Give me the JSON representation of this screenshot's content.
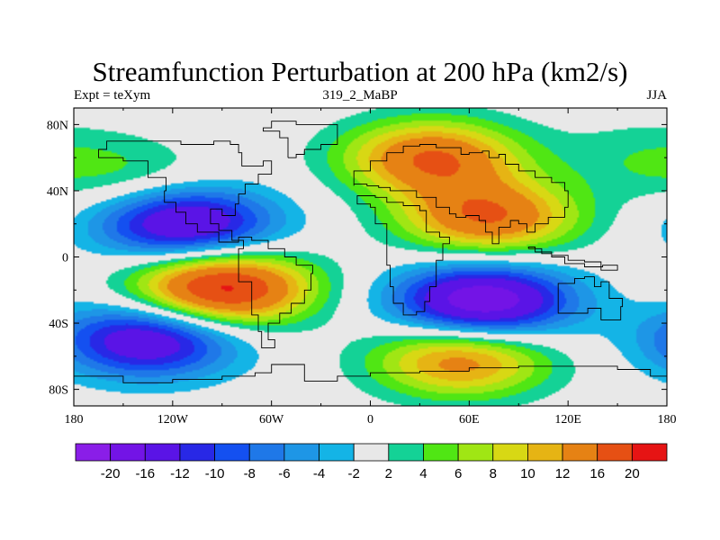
{
  "chart_data": {
    "type": "heatmap",
    "title": "Streamfunction Perturbation at 200 hPa (km2/s)",
    "left_string": "Expt = teXym",
    "center_string": "319_2_MaBP",
    "right_string": "JJA",
    "xlim": [
      -180,
      180
    ],
    "ylim": [
      -90,
      90
    ],
    "x_ticks": [
      {
        "value": -180,
        "label": "180"
      },
      {
        "value": -120,
        "label": "120W"
      },
      {
        "value": -60,
        "label": "60W"
      },
      {
        "value": 0,
        "label": "0"
      },
      {
        "value": 60,
        "label": "60E"
      },
      {
        "value": 120,
        "label": "120E"
      },
      {
        "value": 180,
        "label": "180"
      }
    ],
    "y_ticks": [
      {
        "value": 80,
        "label": "80N"
      },
      {
        "value": 40,
        "label": "40N"
      },
      {
        "value": 0,
        "label": "0"
      },
      {
        "value": -40,
        "label": "40S"
      },
      {
        "value": -80,
        "label": "80S"
      }
    ],
    "colorbar": {
      "levels": [
        -20,
        -16,
        -12,
        -10,
        -8,
        -6,
        -4,
        -2,
        2,
        4,
        6,
        8,
        10,
        12,
        16,
        20
      ],
      "labels": [
        "-20",
        "-16",
        "-12",
        "-10",
        "-8",
        "-6",
        "-4",
        "-2",
        "2",
        "4",
        "6",
        "8",
        "10",
        "12",
        "16",
        "20"
      ],
      "colors": [
        "#8a1ee8",
        "#7314e6",
        "#5a14e6",
        "#2828e6",
        "#1450f0",
        "#1f78e8",
        "#1e96e6",
        "#14b4e6",
        "#e8e8e8",
        "#14d296",
        "#50e614",
        "#a0e614",
        "#d8d814",
        "#e6b414",
        "#e68214",
        "#e65014",
        "#e61414"
      ]
    },
    "anomaly_centers": [
      {
        "lon": -112,
        "lat": 20,
        "peak": -17
      },
      {
        "lon": -90,
        "lat": -19,
        "peak": 22
      },
      {
        "lon": 68,
        "lat": -27,
        "peak": -20
      },
      {
        "lon": 72,
        "lat": 24,
        "peak": 16
      },
      {
        "lon": 37,
        "lat": 60,
        "peak": 16
      },
      {
        "lon": 55,
        "lat": -62,
        "peak": 14
      },
      {
        "lon": -135,
        "lat": -50,
        "peak": -16
      },
      {
        "lon": -145,
        "lat": 48,
        "peak": 4
      },
      {
        "lon": 165,
        "lat": 61,
        "peak": 3
      }
    ]
  }
}
